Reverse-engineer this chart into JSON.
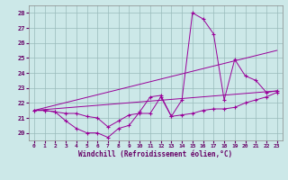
{
  "xlabel": "Windchill (Refroidissement éolien,°C)",
  "xlim": [
    -0.5,
    23.5
  ],
  "ylim": [
    19.5,
    28.5
  ],
  "yticks": [
    20,
    21,
    22,
    23,
    24,
    25,
    26,
    27,
    28
  ],
  "xticks": [
    0,
    1,
    2,
    3,
    4,
    5,
    6,
    7,
    8,
    9,
    10,
    11,
    12,
    13,
    14,
    15,
    16,
    17,
    18,
    19,
    20,
    21,
    22,
    23
  ],
  "background_color": "#cce8e8",
  "line_color": "#990099",
  "grid_color": "#99bbbb",
  "series": [
    {
      "x": [
        0,
        1,
        2,
        3,
        4,
        5,
        6,
        7,
        8,
        9,
        10,
        11,
        12,
        13,
        14,
        15,
        16,
        17,
        18,
        19,
        20,
        21,
        22,
        23
      ],
      "y": [
        21.5,
        21.5,
        21.4,
        20.8,
        20.3,
        20.0,
        20.0,
        19.7,
        20.3,
        20.5,
        21.4,
        22.4,
        22.5,
        21.1,
        21.2,
        21.3,
        21.5,
        21.6,
        21.6,
        21.7,
        22.0,
        22.2,
        22.4,
        22.7
      ]
    },
    {
      "x": [
        0,
        1,
        2,
        3,
        4,
        5,
        6,
        7,
        8,
        9,
        10,
        11,
        12,
        13,
        14,
        15,
        16,
        17,
        18,
        19,
        20,
        21,
        22,
        23
      ],
      "y": [
        21.5,
        21.5,
        21.4,
        21.3,
        21.3,
        21.1,
        21.0,
        20.4,
        20.8,
        21.2,
        21.3,
        21.3,
        22.4,
        21.1,
        22.2,
        28.0,
        27.6,
        26.6,
        22.2,
        24.9,
        23.8,
        23.5,
        22.7,
        22.8
      ]
    },
    {
      "x": [
        0,
        23
      ],
      "y": [
        21.5,
        25.5
      ]
    },
    {
      "x": [
        0,
        23
      ],
      "y": [
        21.5,
        22.8
      ]
    }
  ]
}
